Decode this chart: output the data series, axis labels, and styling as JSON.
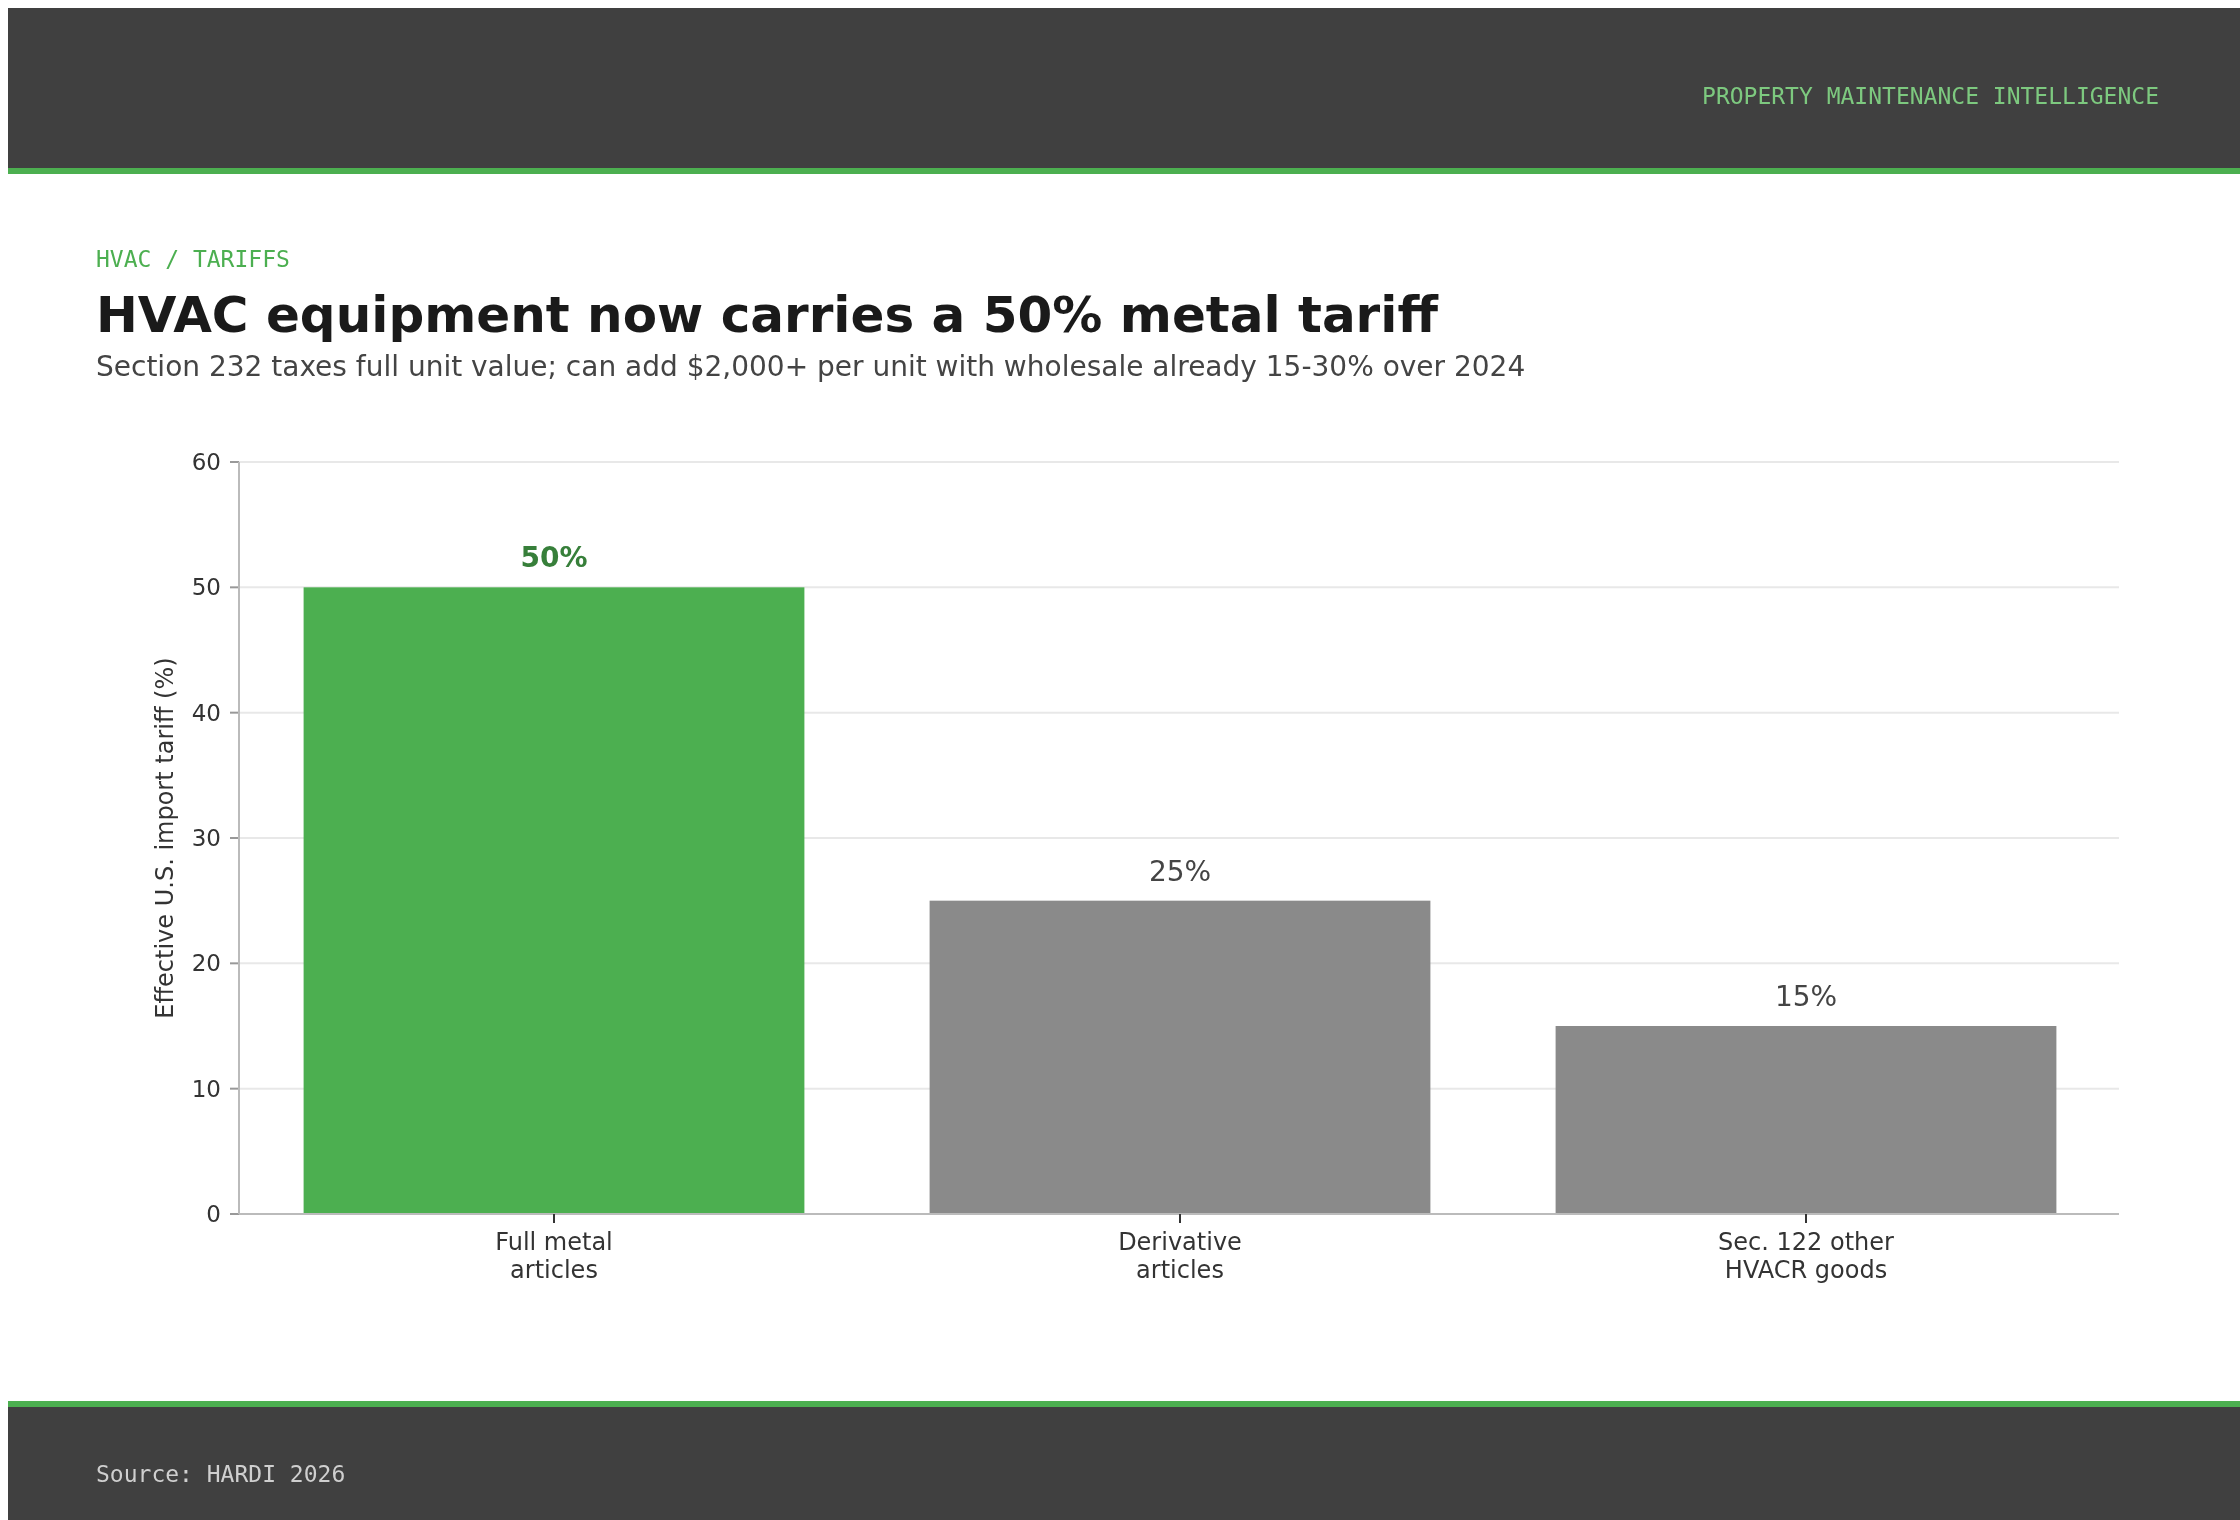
{
  "chart_data": {
    "type": "bar",
    "title": "HVAC equipment now carries a 50% metal tariff",
    "subtitle": "Section 232 taxes full unit value; can add $2,000+ per unit with wholesale already 15-30% over 2024",
    "ylabel": "Effective U.S. import tariff (%)",
    "annotations": [
      "PROPERTY MAINTENANCE INTELLIGENCE",
      "HVAC / TARIFFS",
      "Source: HARDI 2026"
    ],
    "categories": [
      "Full metal articles",
      "Derivative articles",
      "Sec. 122 other HVACR goods"
    ],
    "values": [
      50,
      25,
      15
    ],
    "colors": [
      "#4caf50",
      "#8a8a8a",
      "#8a8a8a"
    ],
    "value_labels": [
      "50%",
      "25%",
      "15%"
    ],
    "ylim": [
      0,
      60
    ],
    "yticks": [
      0,
      10,
      20,
      30,
      40,
      50,
      60
    ],
    "grid": "y"
  }
}
